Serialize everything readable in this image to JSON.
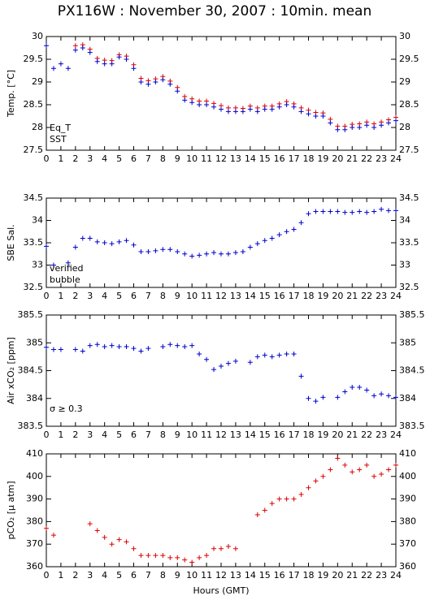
{
  "title": "PX116W : November 30, 2007 : 10min. mean",
  "chart_data": [
    {
      "type": "scatter",
      "ylabel": "Temp. [°C]",
      "x": [
        0,
        0.5,
        1,
        1.5,
        2,
        2.5,
        3,
        3.5,
        4,
        4.5,
        5,
        5.5,
        6,
        6.5,
        7,
        7.5,
        8,
        8.5,
        9,
        9.5,
        10,
        10.5,
        11,
        11.5,
        12,
        12.5,
        13,
        13.5,
        14,
        14.5,
        15,
        15.5,
        16,
        16.5,
        17,
        17.5,
        18,
        18.5,
        19,
        19.5,
        20,
        20.5,
        21,
        21.5,
        22,
        22.5,
        23,
        23.5,
        24
      ],
      "xlim": [
        0,
        24
      ],
      "xticks": [
        0,
        1,
        2,
        3,
        4,
        5,
        6,
        7,
        8,
        9,
        10,
        11,
        12,
        13,
        14,
        15,
        16,
        17,
        18,
        19,
        20,
        21,
        22,
        23,
        24
      ],
      "ylim": [
        27.5,
        30
      ],
      "yticks": [
        27.5,
        28,
        28.5,
        29,
        29.5,
        30
      ],
      "series": [
        {
          "name": "Eq_T",
          "color": "#dd0000",
          "values": [
            null,
            null,
            null,
            null,
            29.8,
            29.82,
            29.72,
            29.52,
            29.48,
            29.47,
            29.6,
            29.57,
            29.38,
            29.08,
            29.03,
            29.07,
            29.12,
            29.02,
            28.88,
            28.68,
            28.63,
            28.58,
            28.58,
            28.53,
            28.48,
            28.43,
            28.43,
            28.42,
            28.47,
            28.43,
            28.47,
            28.47,
            28.52,
            28.57,
            28.52,
            28.43,
            28.38,
            28.33,
            28.32,
            28.18,
            28.03,
            28.03,
            28.07,
            28.08,
            28.12,
            28.08,
            28.12,
            28.17,
            28.22
          ]
        },
        {
          "name": "SST",
          "color": "#0000cc",
          "values": [
            29.8,
            29.3,
            29.4,
            29.3,
            29.7,
            29.75,
            29.65,
            29.45,
            29.4,
            29.4,
            29.55,
            29.5,
            29.3,
            29.0,
            28.95,
            29.0,
            29.05,
            28.95,
            28.8,
            28.6,
            28.55,
            28.5,
            28.5,
            28.45,
            28.4,
            28.35,
            28.35,
            28.35,
            28.4,
            28.35,
            28.4,
            28.4,
            28.45,
            28.5,
            28.45,
            28.35,
            28.3,
            28.25,
            28.25,
            28.1,
            27.95,
            27.95,
            28.0,
            28.0,
            28.05,
            28.0,
            28.05,
            28.1,
            28.15
          ]
        }
      ]
    },
    {
      "type": "scatter",
      "ylabel": "SBE Sal.",
      "x": [
        0,
        0.5,
        1,
        1.5,
        2,
        2.5,
        3,
        3.5,
        4,
        4.5,
        5,
        5.5,
        6,
        6.5,
        7,
        7.5,
        8,
        8.5,
        9,
        9.5,
        10,
        10.5,
        11,
        11.5,
        12,
        12.5,
        13,
        13.5,
        14,
        14.5,
        15,
        15.5,
        16,
        16.5,
        17,
        17.5,
        18,
        18.5,
        19,
        19.5,
        20,
        20.5,
        21,
        21.5,
        22,
        22.5,
        23,
        23.5,
        24
      ],
      "xlim": [
        0,
        24
      ],
      "xticks": [
        0,
        1,
        2,
        3,
        4,
        5,
        6,
        7,
        8,
        9,
        10,
        11,
        12,
        13,
        14,
        15,
        16,
        17,
        18,
        19,
        20,
        21,
        22,
        23,
        24
      ],
      "ylim": [
        32.5,
        34.5
      ],
      "yticks": [
        32.5,
        33,
        33.5,
        34,
        34.5
      ],
      "annotations": [
        {
          "text": "verified",
          "color": "#0000cc"
        },
        {
          "text": "bubble",
          "color": "#cc00cc"
        }
      ],
      "series": [
        {
          "color": "#0000cc",
          "values": [
            33.42,
            33.0,
            null,
            33.05,
            33.4,
            33.6,
            33.6,
            33.52,
            33.5,
            33.48,
            33.52,
            33.55,
            33.45,
            33.3,
            33.3,
            33.32,
            33.35,
            33.35,
            33.3,
            33.25,
            33.2,
            33.22,
            33.25,
            33.28,
            33.25,
            33.25,
            33.28,
            33.3,
            33.4,
            33.48,
            33.55,
            33.6,
            33.68,
            33.75,
            33.8,
            33.95,
            34.15,
            34.2,
            34.2,
            34.2,
            34.2,
            34.18,
            34.18,
            34.2,
            34.18,
            34.2,
            34.25,
            34.22,
            34.22
          ]
        }
      ]
    },
    {
      "type": "scatter",
      "ylabel": "Air xCO₂ [ppm]",
      "x": [
        0,
        0.5,
        1,
        1.5,
        2,
        2.5,
        3,
        3.5,
        4,
        4.5,
        5,
        5.5,
        6,
        6.5,
        7,
        7.5,
        8,
        8.5,
        9,
        9.5,
        10,
        10.5,
        11,
        11.5,
        12,
        12.5,
        13,
        13.5,
        14,
        14.5,
        15,
        15.5,
        16,
        16.5,
        17,
        17.5,
        18,
        18.5,
        19,
        19.5,
        20,
        20.5,
        21,
        21.5,
        22,
        22.5,
        23,
        23.5,
        24
      ],
      "xlim": [
        0,
        24
      ],
      "xticks": [
        0,
        1,
        2,
        3,
        4,
        5,
        6,
        7,
        8,
        9,
        10,
        11,
        12,
        13,
        14,
        15,
        16,
        17,
        18,
        19,
        20,
        21,
        22,
        23,
        24
      ],
      "ylim": [
        383.5,
        385.5
      ],
      "yticks": [
        383.5,
        384,
        384.5,
        385,
        385.5
      ],
      "annotations": [
        {
          "text": "σ ≥ 0.3",
          "color": "#cc00cc"
        }
      ],
      "series": [
        {
          "color": "#0000cc",
          "values": [
            384.92,
            384.88,
            384.88,
            null,
            384.88,
            384.85,
            384.95,
            384.97,
            384.93,
            384.95,
            384.93,
            384.93,
            384.9,
            384.85,
            384.9,
            null,
            384.93,
            384.97,
            384.95,
            384.93,
            384.95,
            384.8,
            384.7,
            384.52,
            384.58,
            384.63,
            384.67,
            null,
            384.65,
            384.75,
            384.78,
            384.75,
            384.78,
            384.8,
            384.8,
            384.4,
            384.0,
            383.95,
            384.02,
            null,
            384.02,
            384.12,
            384.2,
            384.2,
            384.15,
            384.05,
            384.08,
            384.05,
            384.02
          ]
        }
      ]
    },
    {
      "type": "scatter",
      "ylabel": "pCO₂ [μ atm]",
      "xlabel": "Hours (GMT)",
      "x": [
        0,
        0.5,
        1,
        1.5,
        2,
        2.5,
        3,
        3.5,
        4,
        4.5,
        5,
        5.5,
        6,
        6.5,
        7,
        7.5,
        8,
        8.5,
        9,
        9.5,
        10,
        10.5,
        11,
        11.5,
        12,
        12.5,
        13,
        13.5,
        14,
        14.5,
        15,
        15.5,
        16,
        16.5,
        17,
        17.5,
        18,
        18.5,
        19,
        19.5,
        20,
        20.5,
        21,
        21.5,
        22,
        22.5,
        23,
        23.5,
        24
      ],
      "xlim": [
        0,
        24
      ],
      "xticks": [
        0,
        1,
        2,
        3,
        4,
        5,
        6,
        7,
        8,
        9,
        10,
        11,
        12,
        13,
        14,
        15,
        16,
        17,
        18,
        19,
        20,
        21,
        22,
        23,
        24
      ],
      "ylim": [
        360,
        410
      ],
      "yticks": [
        360,
        370,
        380,
        390,
        400,
        410
      ],
      "series": [
        {
          "color": "#dd0000",
          "values": [
            377,
            374,
            null,
            null,
            null,
            null,
            379,
            376,
            373,
            370,
            372,
            371,
            368,
            365,
            365,
            365,
            365,
            364,
            364,
            363,
            362,
            364,
            365,
            368,
            368,
            369,
            368,
            null,
            null,
            383,
            385,
            388,
            390,
            390,
            390,
            392,
            395,
            398,
            400,
            403,
            408,
            405,
            402,
            403,
            405,
            400,
            401,
            403,
            405
          ]
        }
      ]
    }
  ]
}
